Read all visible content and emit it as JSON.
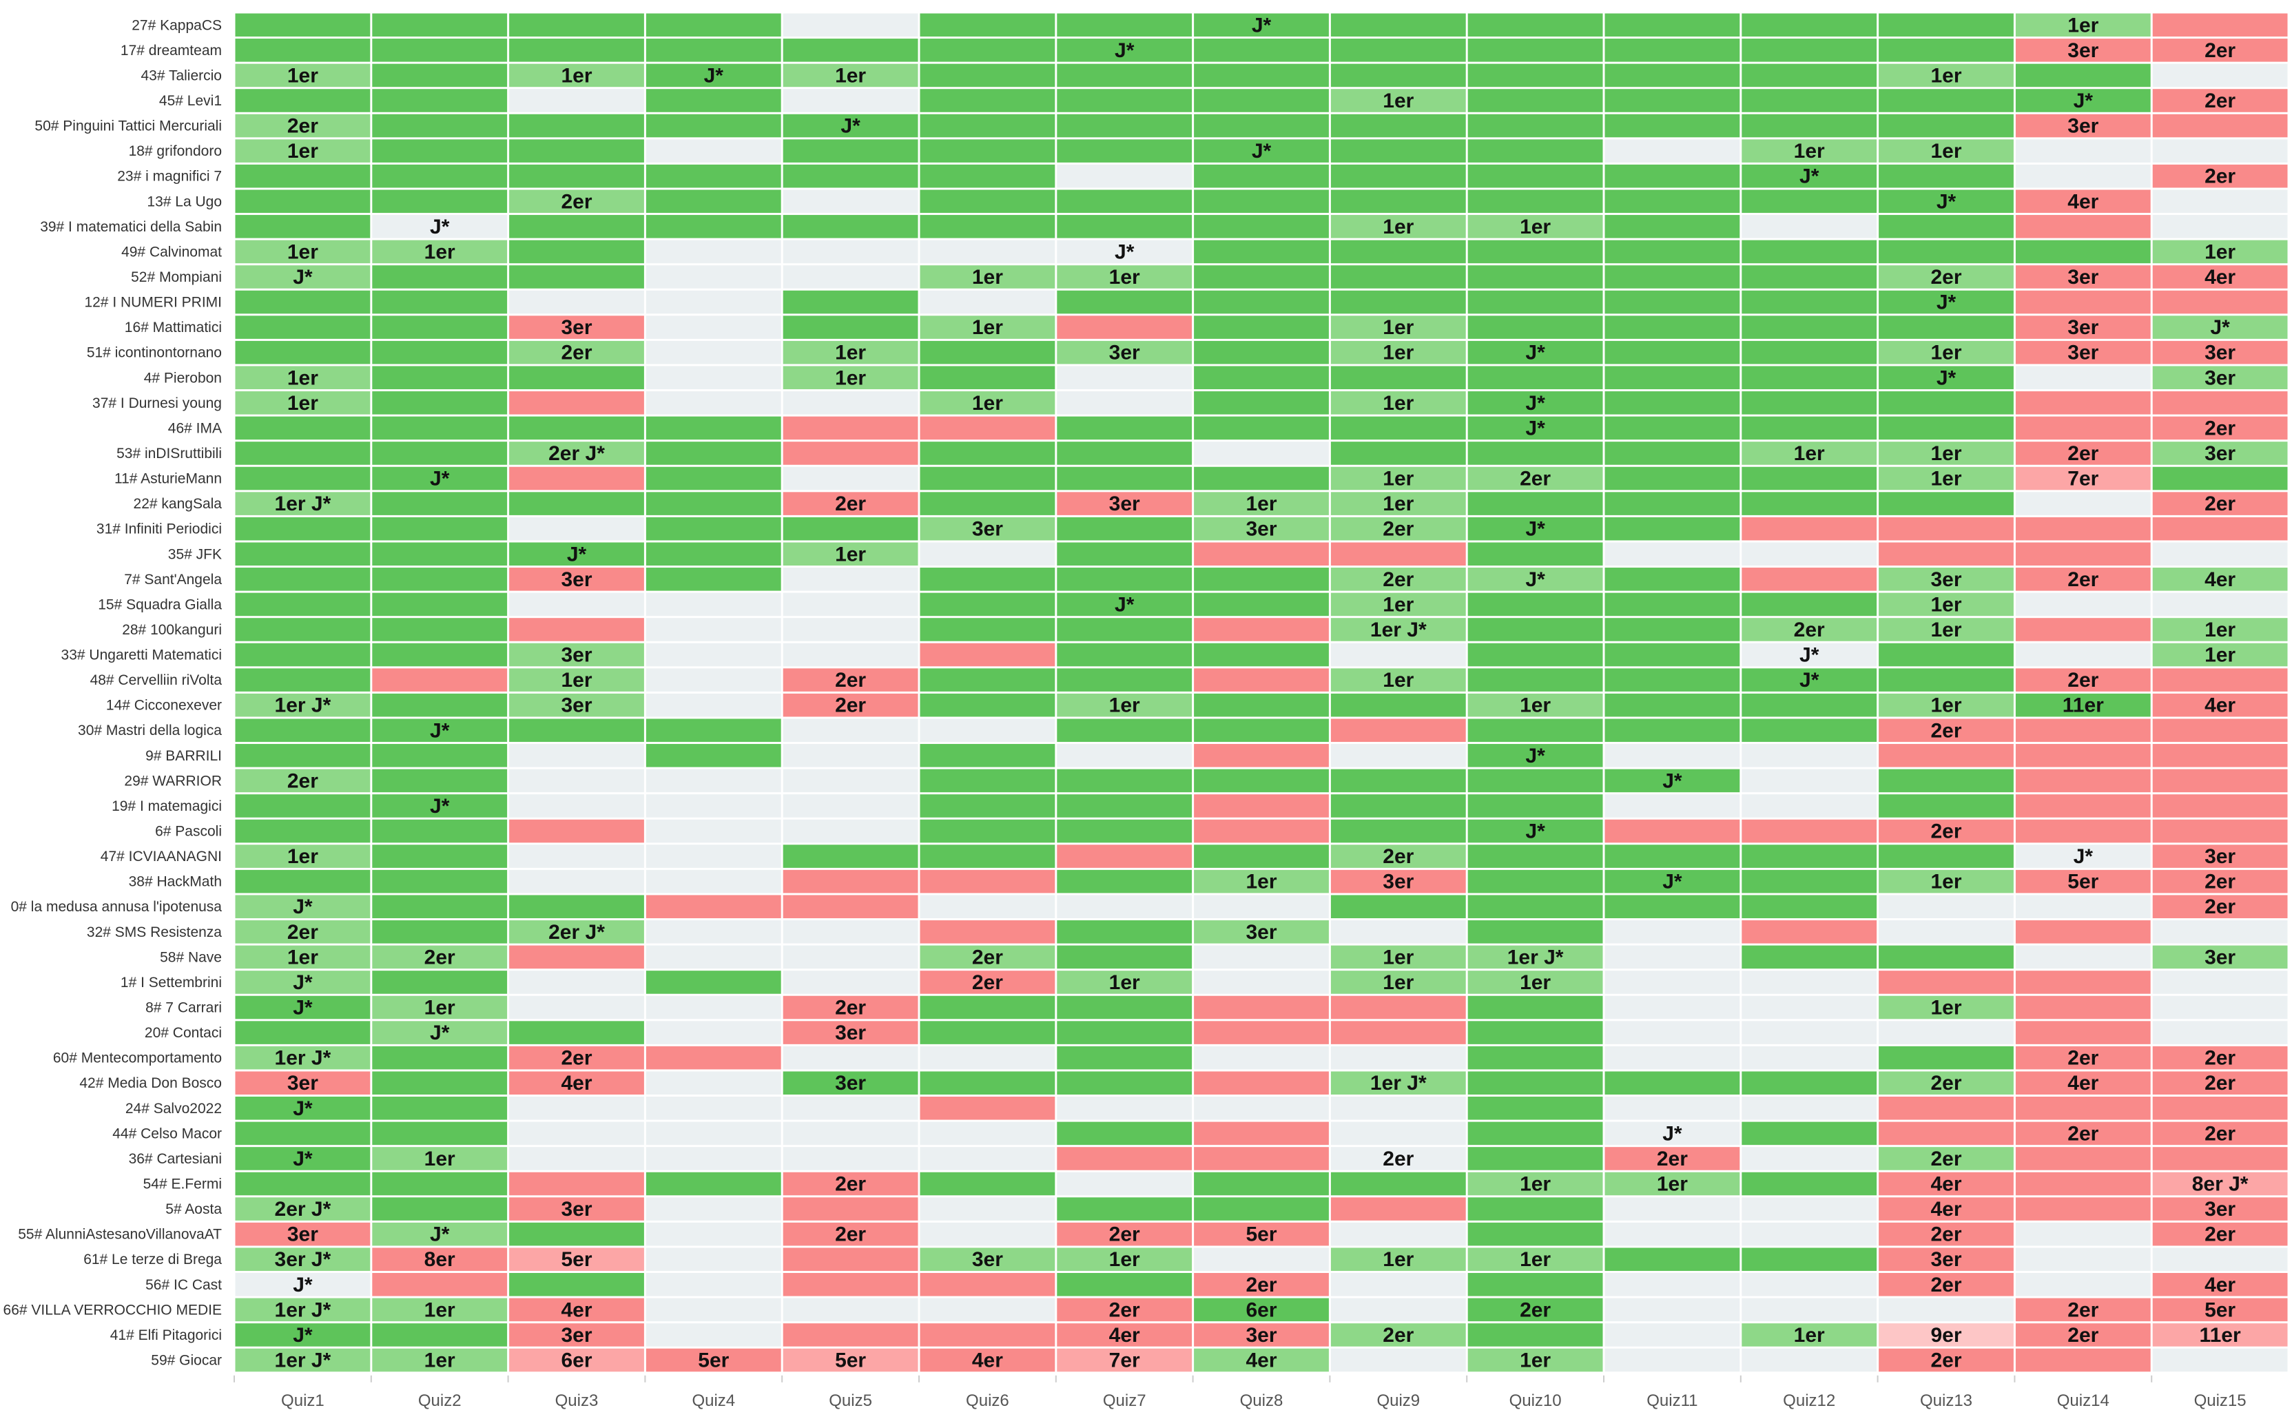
{
  "colors": {
    "G": "#5ec45a",
    "L": "#8ed888",
    "E": "#ebf0f2",
    "R": "#f98a8a",
    "P": "#fca6a6",
    "Q": "#fdc6c6",
    "row_label": "#333333",
    "cell_text": "#111111",
    "axis_text": "#555555",
    "grid": "#ffffff"
  },
  "chart_data": {
    "type": "heatmap",
    "columns": [
      "Quiz1",
      "Quiz2",
      "Quiz3",
      "Quiz4",
      "Quiz5",
      "Quiz6",
      "Quiz7",
      "Quiz8",
      "Quiz9",
      "Quiz10",
      "Quiz11",
      "Quiz12",
      "Quiz13",
      "Quiz14",
      "Quiz15"
    ],
    "rows": [
      {
        "team": "27# KappaCS",
        "cells": "GGGGEGGGGGGGGLR",
        "labels": [
          "",
          "",
          "",
          "",
          "",
          "",
          "",
          "J*",
          "",
          "",
          "",
          "",
          "",
          "1er",
          ""
        ]
      },
      {
        "team": "17# dreamteam",
        "cells": "GGGGGGGGGGGGGRR",
        "labels": [
          "",
          "",
          "",
          "",
          "",
          "",
          "J*",
          "",
          "",
          "",
          "",
          "",
          "",
          "3er",
          "2er"
        ]
      },
      {
        "team": "43# Taliercio",
        "cells": "LGLGLGGGGGGGLGE",
        "labels": [
          "1er",
          "",
          "1er",
          "J*",
          "1er",
          "",
          "",
          "",
          "",
          "",
          "",
          "",
          "1er",
          "",
          ""
        ]
      },
      {
        "team": "45# Levi1",
        "cells": "GGEGEGGGLGGGGGR",
        "labels": [
          "",
          "",
          "",
          "",
          "",
          "",
          "",
          "",
          "1er",
          "",
          "",
          "",
          "",
          "J*",
          "2er"
        ]
      },
      {
        "team": "50# Pinguini Tattici Mercuriali",
        "cells": "LGGGGGGGGGGGGRR",
        "labels": [
          "2er",
          "",
          "",
          "",
          "J*",
          "",
          "",
          "",
          "",
          "",
          "",
          "",
          "",
          "3er",
          ""
        ]
      },
      {
        "team": "18# grifondoro",
        "cells": "LGGEGGGGGGELLEE",
        "labels": [
          "1er",
          "",
          "",
          "",
          "",
          "",
          "",
          "J*",
          "",
          "",
          "",
          "1er",
          "1er",
          "",
          ""
        ]
      },
      {
        "team": "23# i magnifici 7",
        "cells": "GGGGGGEGGGGGGER",
        "labels": [
          "",
          "",
          "",
          "",
          "",
          "",
          "",
          "",
          "",
          "",
          "",
          "J*",
          "",
          "",
          "2er"
        ]
      },
      {
        "team": "13# La Ugo",
        "cells": "GGLGEGGGGGGGGRE",
        "labels": [
          "",
          "",
          "2er",
          "",
          "",
          "",
          "",
          "",
          "",
          "",
          "",
          "",
          "J*",
          "4er",
          ""
        ]
      },
      {
        "team": "39# I matematici della Sabin",
        "cells": "GEGGGGGGLLGEGRE",
        "labels": [
          "",
          "J*",
          "",
          "",
          "",
          "",
          "",
          "",
          "1er",
          "1er",
          "",
          "",
          "",
          "",
          ""
        ]
      },
      {
        "team": "49# Calvinomat",
        "cells": "LLGEEEEGGGGGGGL",
        "labels": [
          "1er",
          "1er",
          "",
          "",
          "",
          "",
          "J*",
          "",
          "",
          "",
          "",
          "",
          "",
          "",
          "1er"
        ]
      },
      {
        "team": "52# Mompiani",
        "cells": "LGGEELLGGGGGLRR",
        "labels": [
          "J*",
          "",
          "",
          "",
          "",
          "1er",
          "1er",
          "",
          "",
          "",
          "",
          "",
          "2er",
          "3er",
          "4er"
        ]
      },
      {
        "team": "12# I NUMERI PRIMI",
        "cells": "GGEEGEGGGGGGGRR",
        "labels": [
          "",
          "",
          "",
          "",
          "",
          "",
          "",
          "",
          "",
          "",
          "",
          "",
          "J*",
          "",
          ""
        ]
      },
      {
        "team": "16# Mattimatici",
        "cells": "GGREGLRGLGGGGRL",
        "labels": [
          "",
          "",
          "3er",
          "",
          "",
          "1er",
          "",
          "",
          "1er",
          "",
          "",
          "",
          "",
          "3er",
          "J*"
        ]
      },
      {
        "team": "51# icontinontornano",
        "cells": "GGLELGLGLGGGLRR",
        "labels": [
          "",
          "",
          "2er",
          "",
          "1er",
          "",
          "3er",
          "",
          "1er",
          "J*",
          "",
          "",
          "1er",
          "3er",
          "3er"
        ]
      },
      {
        "team": "4# Pierobon",
        "cells": "LGGELGEGGGGGGEL",
        "labels": [
          "1er",
          "",
          "",
          "",
          "1er",
          "",
          "",
          "",
          "",
          "",
          "",
          "",
          "J*",
          "",
          "3er"
        ]
      },
      {
        "team": "37# I Durnesi young",
        "cells": "LGREELEGLGGGGRR",
        "labels": [
          "1er",
          "",
          "",
          "",
          "",
          "1er",
          "",
          "",
          "1er",
          "J*",
          "",
          "",
          "",
          "",
          ""
        ]
      },
      {
        "team": "46# IMA",
        "cells": "GGGGRRGGGGGGGRR",
        "labels": [
          "",
          "",
          "",
          "",
          "",
          "",
          "",
          "",
          "",
          "J*",
          "",
          "",
          "",
          "",
          "2er"
        ]
      },
      {
        "team": "53# inDISruttibili",
        "cells": "GGLGRGGEGGGLLRL",
        "labels": [
          "",
          "",
          "2er J*",
          "",
          "",
          "",
          "",
          "",
          "",
          "",
          "",
          "1er",
          "1er",
          "2er",
          "3er"
        ]
      },
      {
        "team": "11# AsturieMann",
        "cells": "GGRGEGGGLLGGLPG",
        "labels": [
          "",
          "J*",
          "",
          "",
          "",
          "",
          "",
          "",
          "1er",
          "2er",
          "",
          "",
          "1er",
          "7er",
          ""
        ]
      },
      {
        "team": "22# kangSala",
        "cells": "LGGGRGRLLGGGGER",
        "labels": [
          "1er J*",
          "",
          "",
          "",
          "2er",
          "",
          "3er",
          "1er",
          "1er",
          "",
          "",
          "",
          "",
          "",
          "2er"
        ]
      },
      {
        "team": "31# Infiniti Periodici",
        "cells": "GGEGGLGLLGGRRRR",
        "labels": [
          "",
          "",
          "",
          "",
          "",
          "3er",
          "",
          "3er",
          "2er",
          "J*",
          "",
          "",
          "",
          "",
          ""
        ]
      },
      {
        "team": "35# JFK",
        "cells": "GGGGLEGRRGEERRE",
        "labels": [
          "",
          "",
          "J*",
          "",
          "1er",
          "",
          "",
          "",
          "",
          "",
          "",
          "",
          "",
          "",
          ""
        ]
      },
      {
        "team": "7# Sant'Angela",
        "cells": "GGRGEGGGLLGRLRL",
        "labels": [
          "",
          "",
          "3er",
          "",
          "",
          "",
          "",
          "",
          "2er",
          "J*",
          "",
          "",
          "3er",
          "2er",
          "4er"
        ]
      },
      {
        "team": "15# Squadra Gialla",
        "cells": "GGEEEGGGLGGGLEE",
        "labels": [
          "",
          "",
          "",
          "",
          "",
          "",
          "J*",
          "",
          "1er",
          "",
          "",
          "",
          "1er",
          "",
          ""
        ]
      },
      {
        "team": "28# 100kanguri",
        "cells": "GGREEGGRLGGLLRL",
        "labels": [
          "",
          "",
          "",
          "",
          "",
          "",
          "",
          "",
          "1er J*",
          "",
          "",
          "2er",
          "1er",
          "",
          "1er"
        ]
      },
      {
        "team": "33# Ungaretti Matematici",
        "cells": "GGLEERGGEGGEGEL",
        "labels": [
          "",
          "",
          "3er",
          "",
          "",
          "",
          "",
          "",
          "",
          "",
          "",
          "J*",
          "",
          "",
          "1er"
        ]
      },
      {
        "team": "48# Cervelliin riVolta",
        "cells": "GRLERGGRLGGGGRR",
        "labels": [
          "",
          "",
          "1er",
          "",
          "2er",
          "",
          "",
          "",
          "1er",
          "",
          "",
          "J*",
          "",
          "2er",
          ""
        ]
      },
      {
        "team": "14# Cicconexever",
        "cells": "LGLERGLGGLGGLGR",
        "labels": [
          "1er J*",
          "",
          "3er",
          "",
          "2er",
          "",
          "1er",
          "",
          "",
          "1er",
          "",
          "",
          "1er",
          "11er",
          "4er"
        ]
      },
      {
        "team": "30# Mastri della logica",
        "cells": "GGGGEEGGRGGGRRR",
        "labels": [
          "",
          "J*",
          "",
          "",
          "",
          "",
          "",
          "",
          "",
          "",
          "",
          "",
          "2er",
          "",
          ""
        ]
      },
      {
        "team": "9# BARRILI",
        "cells": "GGEGEGEREGEERRR",
        "labels": [
          "",
          "",
          "",
          "",
          "",
          "",
          "",
          "",
          "",
          "J*",
          "",
          "",
          "",
          "",
          ""
        ]
      },
      {
        "team": "29# WARRIOR",
        "cells": "LGEEEGGGGGGEGRR",
        "labels": [
          "2er",
          "",
          "",
          "",
          "",
          "",
          "",
          "",
          "",
          "",
          "J*",
          "",
          "",
          "",
          ""
        ]
      },
      {
        "team": "19# I matemagici",
        "cells": "GGEEEGGRGGEEGRR",
        "labels": [
          "",
          "J*",
          "",
          "",
          "",
          "",
          "",
          "",
          "",
          "",
          "",
          "",
          "",
          "",
          ""
        ]
      },
      {
        "team": "6# Pascoli",
        "cells": "GGREEGGRGGRRRRR",
        "labels": [
          "",
          "",
          "",
          "",
          "",
          "",
          "",
          "",
          "",
          "J*",
          "",
          "",
          "2er",
          "",
          ""
        ]
      },
      {
        "team": "47# ICVIAANAGNI",
        "cells": "LGEEGGRGLGGGGER",
        "labels": [
          "1er",
          "",
          "",
          "",
          "",
          "",
          "",
          "",
          "2er",
          "",
          "",
          "",
          "",
          "J*",
          "3er"
        ]
      },
      {
        "team": "38# HackMath",
        "cells": "GGEERRGLRGGGLRR",
        "labels": [
          "",
          "",
          "",
          "",
          "",
          "",
          "",
          "1er",
          "3er",
          "",
          "J*",
          "",
          "1er",
          "5er",
          "2er"
        ]
      },
      {
        "team": "0# la medusa annusa l'ipotenusa",
        "cells": "LGGRREEEGGGGEER",
        "labels": [
          "J*",
          "",
          "",
          "",
          "",
          "",
          "",
          "",
          "",
          "",
          "",
          "",
          "",
          "",
          "2er"
        ]
      },
      {
        "team": "32# SMS Resistenza",
        "cells": "LGLEERGLEGERERE",
        "labels": [
          "2er",
          "",
          "2er J*",
          "",
          "",
          "",
          "",
          "3er",
          "",
          "",
          "",
          "",
          "",
          "",
          ""
        ]
      },
      {
        "team": "58# Nave",
        "cells": "LLREELGELLEGGEL",
        "labels": [
          "1er",
          "2er",
          "",
          "",
          "",
          "2er",
          "",
          "",
          "1er",
          "1er J*",
          "",
          "",
          "",
          "",
          "3er"
        ]
      },
      {
        "team": "1# I Settembrini",
        "cells": "LGEGERLELLEERRE",
        "labels": [
          "J*",
          "",
          "",
          "",
          "",
          "2er",
          "1er",
          "",
          "1er",
          "1er",
          "",
          "",
          "",
          "",
          ""
        ]
      },
      {
        "team": "8# 7 Carrari",
        "cells": "GLEERGGRRGEELRE",
        "labels": [
          "J*",
          "1er",
          "",
          "",
          "2er",
          "",
          "",
          "",
          "",
          "",
          "",
          "",
          "1er",
          "",
          ""
        ]
      },
      {
        "team": "20# Contaci",
        "cells": "GLGERGGRRGEEERE",
        "labels": [
          "",
          "J*",
          "",
          "",
          "3er",
          "",
          "",
          "",
          "",
          "",
          "",
          "",
          "",
          "",
          ""
        ]
      },
      {
        "team": "60# Mentecomportamento",
        "cells": "LGRREEGEEGEEGRR",
        "labels": [
          "1er J*",
          "",
          "2er",
          "",
          "",
          "",
          "",
          "",
          "",
          "",
          "",
          "",
          "",
          "2er",
          "2er"
        ]
      },
      {
        "team": "42# Media Don Bosco",
        "cells": "RGREGGGRLGGGLRR",
        "labels": [
          "3er",
          "",
          "4er",
          "",
          "3er",
          "",
          "",
          "",
          "1er J*",
          "",
          "",
          "",
          "2er",
          "4er",
          "2er"
        ]
      },
      {
        "team": "24# Salvo2022",
        "cells": "GGEEEREEEGEERRR",
        "labels": [
          "J*",
          "",
          "",
          "",
          "",
          "",
          "",
          "",
          "",
          "",
          "",
          "",
          "",
          "",
          ""
        ]
      },
      {
        "team": "44# Celso Macor",
        "cells": "GGEEEEGREGEGRRR",
        "labels": [
          "",
          "",
          "",
          "",
          "",
          "",
          "",
          "",
          "",
          "",
          "J*",
          "",
          "",
          "2er",
          "2er"
        ]
      },
      {
        "team": "36# Cartesiani",
        "cells": "GLEEEERREGRELRR",
        "labels": [
          "J*",
          "1er",
          "",
          "",
          "",
          "",
          "",
          "",
          "2er",
          "",
          "2er",
          "",
          "2er",
          "",
          ""
        ]
      },
      {
        "team": "54# E.Fermi",
        "cells": "GGRGRGEGGLLGRRP",
        "labels": [
          "",
          "",
          "",
          "",
          "2er",
          "",
          "",
          "",
          "",
          "1er",
          "1er",
          "",
          "4er",
          "",
          "8er J*"
        ]
      },
      {
        "team": "5# Aosta",
        "cells": "LGREREGGRGEERRR",
        "labels": [
          "2er J*",
          "",
          "3er",
          "",
          "",
          "",
          "",
          "",
          "",
          "",
          "",
          "",
          "4er",
          "",
          "3er"
        ]
      },
      {
        "team": "55# AlunniAstesanoVillanovaAT",
        "cells": "RLGERERREGEERER",
        "labels": [
          "3er",
          "J*",
          "",
          "",
          "2er",
          "",
          "2er",
          "5er",
          "",
          "",
          "",
          "",
          "2er",
          "",
          "2er"
        ]
      },
      {
        "team": "61# Le terze di Brega",
        "cells": "LRPERLLELLGGREE",
        "labels": [
          "3er J*",
          "8er",
          "5er",
          "",
          "",
          "3er",
          "1er",
          "",
          "1er",
          "1er",
          "",
          "",
          "3er",
          "",
          ""
        ]
      },
      {
        "team": "56# IC Cast",
        "cells": "ERGERRGREGEERER",
        "labels": [
          "J*",
          "",
          "",
          "",
          "",
          "",
          "",
          "2er",
          "",
          "",
          "",
          "",
          "2er",
          "",
          "4er"
        ]
      },
      {
        "team": "66# VILLA VERROCCHIO MEDIE",
        "cells": "LLREEERGEGEEERR",
        "labels": [
          "1er J*",
          "1er",
          "4er",
          "",
          "",
          "",
          "2er",
          "6er",
          "",
          "2er",
          "",
          "",
          "",
          "2er",
          "5er"
        ]
      },
      {
        "team": "41# Elfi Pitagorici",
        "cells": "GGRERRRRLGELQRP",
        "labels": [
          "J*",
          "",
          "3er",
          "",
          "",
          "",
          "4er",
          "3er",
          "2er",
          "",
          "",
          "1er",
          "9er",
          "2er",
          "11er"
        ]
      },
      {
        "team": "59# Giocar",
        "cells": "LLPRPRPLELEERRE",
        "labels": [
          "1er J*",
          "1er",
          "6er",
          "5er",
          "5er",
          "4er",
          "7er",
          "4er",
          "",
          "1er",
          "",
          "",
          "2er",
          "",
          ""
        ]
      }
    ]
  }
}
